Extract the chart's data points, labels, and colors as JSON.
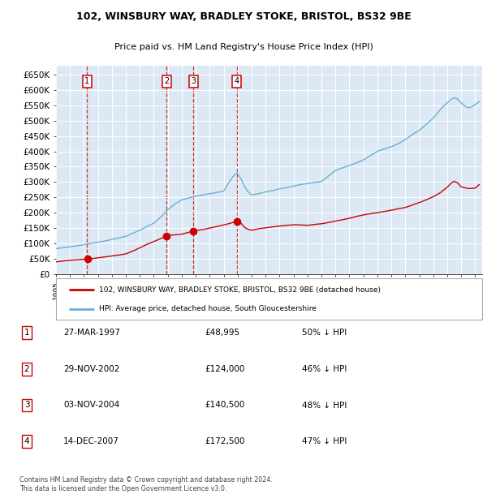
{
  "title1": "102, WINSBURY WAY, BRADLEY STOKE, BRISTOL, BS32 9BE",
  "title2": "Price paid vs. HM Land Registry's House Price Index (HPI)",
  "red_label": "102, WINSBURY WAY, BRADLEY STOKE, BRISTOL, BS32 9BE (detached house)",
  "blue_label": "HPI: Average price, detached house, South Gloucestershire",
  "footer": "Contains HM Land Registry data © Crown copyright and database right 2024.\nThis data is licensed under the Open Government Licence v3.0.",
  "purchases": [
    {
      "num": 1,
      "date": "27-MAR-1997",
      "price": "£48,995",
      "pct": "50% ↓ HPI",
      "x_year": 1997.23,
      "price_val": 48995
    },
    {
      "num": 2,
      "date": "29-NOV-2002",
      "price": "£124,000",
      "pct": "46% ↓ HPI",
      "x_year": 2002.91,
      "price_val": 124000
    },
    {
      "num": 3,
      "date": "03-NOV-2004",
      "price": "£140,500",
      "pct": "48% ↓ HPI",
      "x_year": 2004.84,
      "price_val": 140500
    },
    {
      "num": 4,
      "date": "14-DEC-2007",
      "price": "£172,500",
      "pct": "47% ↓ HPI",
      "x_year": 2007.95,
      "price_val": 172500
    }
  ],
  "ylim": [
    0,
    680000
  ],
  "xlim": [
    1995.0,
    2025.5
  ],
  "plot_bg": "#dce9f5",
  "red_color": "#cc0000",
  "blue_color": "#6aaed6",
  "grid_color": "#ffffff",
  "yticks": [
    0,
    50000,
    100000,
    150000,
    200000,
    250000,
    300000,
    350000,
    400000,
    450000,
    500000,
    550000,
    600000,
    650000
  ],
  "ytick_labels": [
    "£0",
    "£50K",
    "£100K",
    "£150K",
    "£200K",
    "£250K",
    "£300K",
    "£350K",
    "£400K",
    "£450K",
    "£500K",
    "£550K",
    "£600K",
    "£650K"
  ],
  "hpi_key_x": [
    1995.0,
    1995.5,
    1996.0,
    1996.5,
    1997.0,
    1997.5,
    1998.0,
    1998.5,
    1999.0,
    1999.5,
    2000.0,
    2000.5,
    2001.0,
    2001.5,
    2002.0,
    2002.5,
    2003.0,
    2003.5,
    2004.0,
    2004.5,
    2005.0,
    2005.5,
    2006.0,
    2006.5,
    2007.0,
    2007.33,
    2007.67,
    2007.95,
    2008.25,
    2008.5,
    2008.75,
    2009.0,
    2009.5,
    2010.0,
    2010.5,
    2011.0,
    2011.5,
    2012.0,
    2012.5,
    2013.0,
    2013.5,
    2014.0,
    2014.5,
    2015.0,
    2015.5,
    2016.0,
    2016.5,
    2017.0,
    2017.5,
    2018.0,
    2018.5,
    2019.0,
    2019.5,
    2020.0,
    2020.5,
    2021.0,
    2021.5,
    2022.0,
    2022.25,
    2022.5,
    2022.75,
    2023.0,
    2023.25,
    2023.5,
    2023.75,
    2024.0,
    2024.25,
    2024.5,
    2024.75,
    2025.0,
    2025.3
  ],
  "hpi_key_y": [
    83000,
    86000,
    89000,
    92000,
    96000,
    100000,
    104000,
    108000,
    113000,
    118000,
    123000,
    133000,
    143000,
    155000,
    166000,
    186000,
    210000,
    228000,
    242000,
    248000,
    254000,
    258000,
    262000,
    266000,
    270000,
    295000,
    318000,
    330000,
    310000,
    285000,
    268000,
    258000,
    262000,
    268000,
    272000,
    278000,
    282000,
    287000,
    292000,
    295000,
    298000,
    302000,
    320000,
    338000,
    346000,
    354000,
    362000,
    372000,
    386000,
    400000,
    408000,
    415000,
    425000,
    438000,
    455000,
    468000,
    488000,
    508000,
    522000,
    536000,
    548000,
    558000,
    568000,
    575000,
    570000,
    558000,
    548000,
    542000,
    545000,
    552000,
    562000
  ],
  "red_key_x": [
    1995.0,
    1995.5,
    1996.0,
    1996.5,
    1997.0,
    1997.23,
    1997.5,
    1998.0,
    1998.5,
    1999.0,
    1999.5,
    2000.0,
    2000.5,
    2001.0,
    2001.5,
    2002.0,
    2002.5,
    2002.91,
    2003.0,
    2003.5,
    2004.0,
    2004.5,
    2004.84,
    2005.0,
    2005.5,
    2006.0,
    2006.5,
    2007.0,
    2007.5,
    2007.95,
    2008.25,
    2008.5,
    2008.75,
    2009.0,
    2009.5,
    2010.0,
    2010.5,
    2011.0,
    2011.5,
    2012.0,
    2012.5,
    2013.0,
    2013.5,
    2014.0,
    2014.5,
    2015.0,
    2015.5,
    2016.0,
    2016.5,
    2017.0,
    2017.5,
    2018.0,
    2018.5,
    2019.0,
    2019.5,
    2020.0,
    2020.5,
    2021.0,
    2021.5,
    2022.0,
    2022.5,
    2023.0,
    2023.25,
    2023.5,
    2023.75,
    2024.0,
    2024.5,
    2025.0,
    2025.3
  ],
  "red_key_y": [
    40000,
    43000,
    45000,
    47000,
    48500,
    48995,
    50000,
    53000,
    56000,
    59000,
    62000,
    66000,
    75000,
    86000,
    97000,
    106000,
    116000,
    124000,
    126000,
    128000,
    130000,
    136000,
    140500,
    142000,
    145000,
    150000,
    155000,
    160000,
    166000,
    172500,
    165000,
    152000,
    146000,
    143000,
    148000,
    151000,
    154000,
    157000,
    159000,
    161000,
    160000,
    159000,
    162000,
    164000,
    168000,
    173000,
    177000,
    182000,
    188000,
    193000,
    197000,
    200000,
    204000,
    208000,
    213000,
    217000,
    225000,
    233000,
    242000,
    252000,
    265000,
    283000,
    295000,
    303000,
    297000,
    284000,
    279000,
    280000,
    292000
  ]
}
